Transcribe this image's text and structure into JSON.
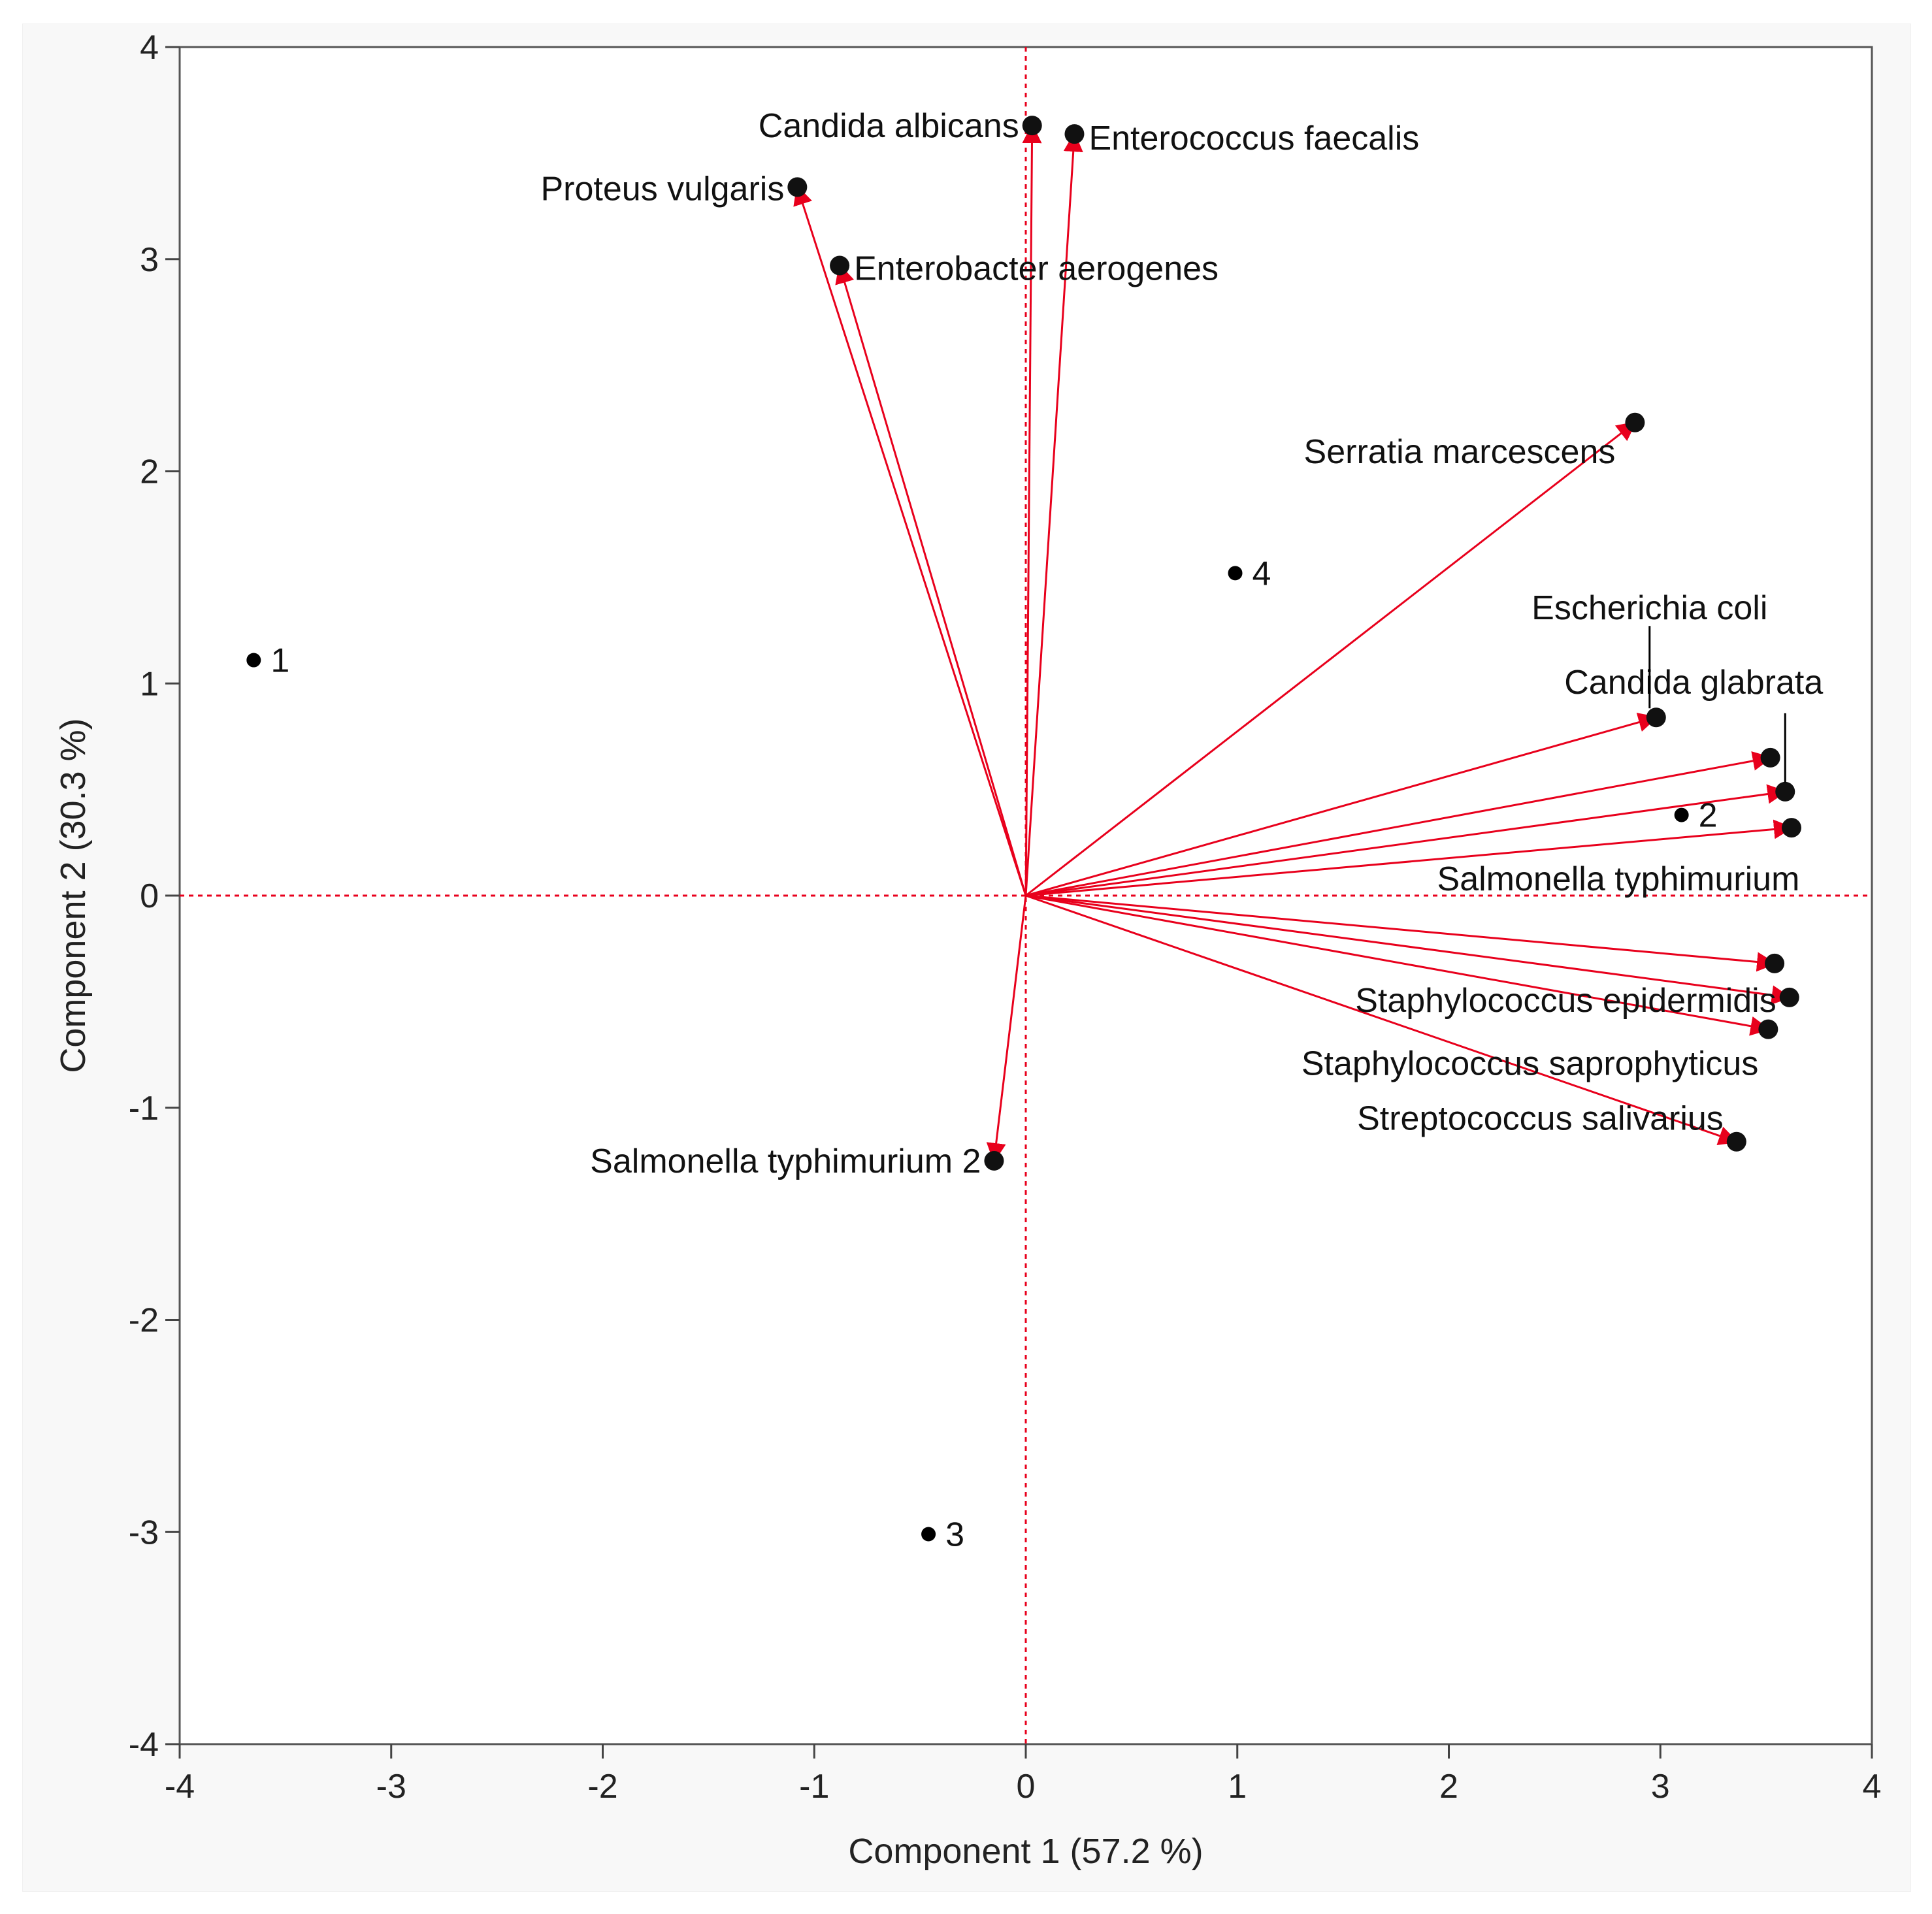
{
  "chart_data": {
    "type": "scatter",
    "subtype": "biplot",
    "title": "",
    "xlabel": "Component 1  (57.2 %)",
    "ylabel": "Component 2  (30.3 %)",
    "xlim": [
      -4,
      4
    ],
    "ylim": [
      -4,
      4
    ],
    "xticks": [
      -4,
      -3,
      -2,
      -1,
      0,
      1,
      2,
      3,
      4
    ],
    "yticks": [
      -4,
      -3,
      -2,
      -1,
      0,
      1,
      2,
      3,
      4
    ],
    "reference_lines": {
      "x": 0,
      "y": 0,
      "color": "#e8001c"
    },
    "colors": {
      "vector": "#e8001c",
      "marker": "#000000",
      "frame": "#444444"
    },
    "observations": [
      {
        "label": "1",
        "x": -3.65,
        "y": 1.11
      },
      {
        "label": "2",
        "x": 3.1,
        "y": 0.38
      },
      {
        "label": "3",
        "x": -0.46,
        "y": -3.01
      },
      {
        "label": "4",
        "x": 0.99,
        "y": 1.52
      }
    ],
    "loadings": [
      {
        "label": "Candida albicans",
        "x": 0.03,
        "y": 3.63
      },
      {
        "label": "Enterococcus faecalis",
        "x": 0.23,
        "y": 3.59
      },
      {
        "label": "Proteus vulgaris",
        "x": -1.08,
        "y": 3.34
      },
      {
        "label": "Enterobacter aerogenes",
        "x": -0.88,
        "y": 2.97
      },
      {
        "label": "Serratia marcescens",
        "x": 2.88,
        "y": 2.23
      },
      {
        "label": "Escherichia coli",
        "x": 2.98,
        "y": 0.84
      },
      {
        "label": "Candida glabrata",
        "x": 3.59,
        "y": 0.49
      },
      {
        "label": "",
        "x": 3.52,
        "y": 0.65
      },
      {
        "label": "Salmonella typhimurium",
        "x": 3.62,
        "y": 0.32
      },
      {
        "label": "",
        "x": 3.54,
        "y": -0.32
      },
      {
        "label": "Staphylococcus epidermidis",
        "x": 3.61,
        "y": -0.48
      },
      {
        "label": "Staphylococcus saprophyticus",
        "x": 3.51,
        "y": -0.63
      },
      {
        "label": "Streptococcus salivarius",
        "x": 3.36,
        "y": -1.16
      },
      {
        "label": "Salmonella typhimurium 2",
        "x": -0.15,
        "y": -1.25
      }
    ]
  }
}
